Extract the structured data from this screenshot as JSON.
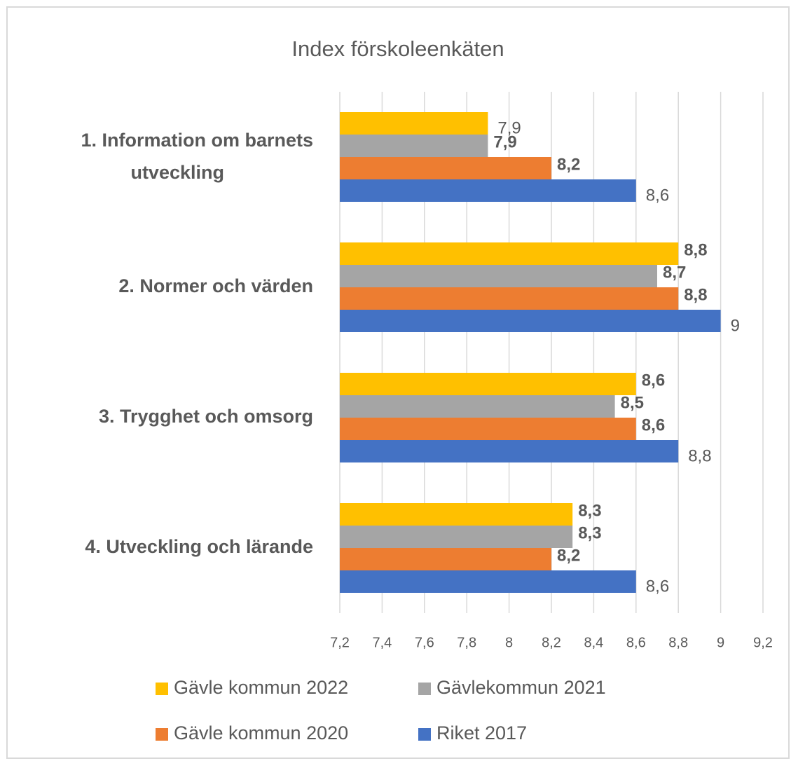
{
  "chart_data": {
    "type": "bar",
    "orientation": "horizontal",
    "title": "Index förskoleenkäten",
    "categories": [
      "1. Information om barnets utveckling",
      "2. Normer och värden",
      "3. Trygghet och omsorg",
      "4. Utveckling och lärande"
    ],
    "series": [
      {
        "name": "Gävle kommun 2022",
        "color": "#FFC000",
        "values": [
          7.9,
          8.8,
          8.6,
          8.3
        ],
        "value_labels": [
          "7,9",
          "8,8",
          "8,6",
          "8,3"
        ]
      },
      {
        "name": "Gävlekommun 2021",
        "color": "#A5A5A5",
        "values": [
          7.9,
          8.7,
          8.5,
          8.3
        ],
        "value_labels": [
          "7,9",
          "8,7",
          "8,5",
          "8,3"
        ]
      },
      {
        "name": "Gävle kommun 2020",
        "color": "#ED7D31",
        "values": [
          8.2,
          8.8,
          8.6,
          8.2
        ],
        "value_labels": [
          "8,2",
          "8,8",
          "8,6",
          "8,2"
        ]
      },
      {
        "name": "Riket 2017",
        "color": "#4472C4",
        "values": [
          8.6,
          9,
          8.8,
          8.6
        ],
        "value_labels": [
          "8,6",
          "9",
          "8,8",
          "8,6"
        ]
      }
    ],
    "xlim": [
      7.2,
      9.2
    ],
    "xticks": [
      {
        "value": 7.2,
        "label": "7,2"
      },
      {
        "value": 7.4,
        "label": "7,4"
      },
      {
        "value": 7.6,
        "label": "7,6"
      },
      {
        "value": 7.8,
        "label": "7,8"
      },
      8,
      {
        "value": 8.2,
        "label": "8,2"
      },
      {
        "value": 8.4,
        "label": "8,4"
      },
      {
        "value": 8.6,
        "label": "8,6"
      },
      {
        "value": 8.8,
        "label": "8,8"
      },
      9,
      {
        "value": 9.2,
        "label": "9,2"
      }
    ],
    "grid": true,
    "legend": "bottom"
  }
}
